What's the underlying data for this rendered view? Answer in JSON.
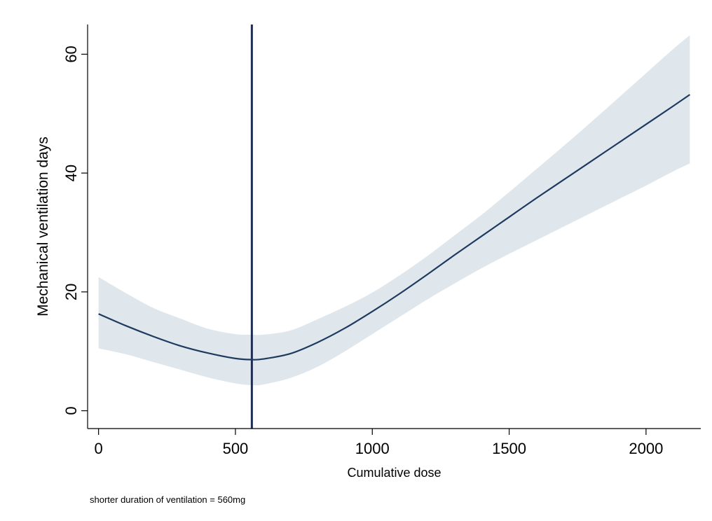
{
  "chart_data": {
    "type": "line",
    "title": "",
    "xlabel": "Cumulative dose",
    "ylabel": "Mechanical ventilation days",
    "xlim": [
      -40,
      2200
    ],
    "ylim": [
      -3,
      65
    ],
    "xticks": [
      0,
      500,
      1000,
      1500,
      2000
    ],
    "yticks": [
      0,
      20,
      40,
      60
    ],
    "grid": false,
    "legend": "none",
    "note": "shorter duration of ventilation = 560mg",
    "reference_line": {
      "x": 560
    },
    "colors": {
      "line": "#1f3a5f",
      "band": "#dde6ec",
      "reference": "#1f2d52"
    },
    "x": [
      0,
      100,
      200,
      300,
      400,
      500,
      560,
      600,
      700,
      800,
      900,
      1000,
      1100,
      1200,
      1300,
      1400,
      1500,
      1600,
      1700,
      1800,
      1900,
      2000,
      2100,
      2160
    ],
    "series": [
      {
        "values": [
          16.3,
          14.3,
          12.5,
          10.9,
          9.7,
          8.8,
          8.6,
          8.7,
          9.6,
          11.5,
          13.9,
          16.7,
          19.7,
          22.9,
          26.2,
          29.4,
          32.6,
          35.8,
          38.9,
          42.0,
          45.1,
          48.2,
          51.3,
          53.2
        ]
      }
    ],
    "band": {
      "upper": [
        22.5,
        19.8,
        17.3,
        15.5,
        13.8,
        12.9,
        12.8,
        12.8,
        13.5,
        15.4,
        17.5,
        19.9,
        22.8,
        26.0,
        29.5,
        33.0,
        36.8,
        40.7,
        44.6,
        48.6,
        52.7,
        56.8,
        60.9,
        63.2
      ],
      "lower": [
        10.5,
        9.5,
        8.2,
        6.9,
        5.6,
        4.6,
        4.3,
        4.4,
        5.5,
        7.4,
        10.0,
        12.9,
        15.8,
        18.7,
        21.4,
        24.0,
        26.4,
        28.7,
        31.0,
        33.3,
        35.6,
        37.9,
        40.3,
        41.6
      ]
    }
  }
}
